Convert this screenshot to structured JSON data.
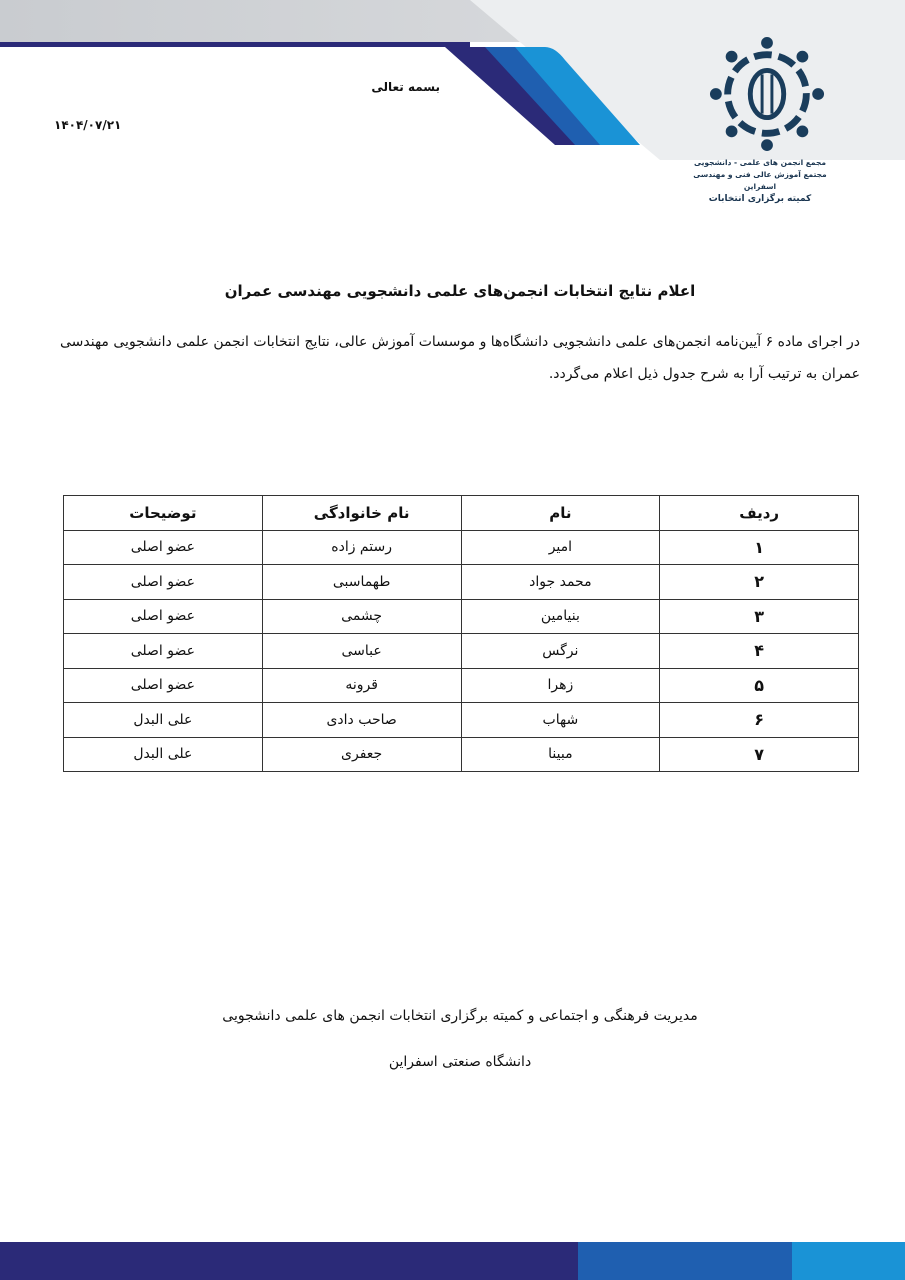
{
  "header": {
    "logo_text": [
      "مجمع انجمن های علمی - دانشجویی",
      "مجتمع آموزش عالی فنی و مهندسی اسفراین",
      "کمیته برگزاری انتخابات"
    ],
    "bismillah": "بسمه تعالی",
    "date": "۱۴۰۴/۰۷/۲۱"
  },
  "colors": {
    "navy": "#2b2a78",
    "blue": "#1f5fb0",
    "light_blue": "#1a93d6"
  },
  "title": "اعلام نتایج انتخابات انجمن‌های علمی دانشجویی مهندسی عمران",
  "body": "در اجرای ماده ۶ آیین‌نامه انجمن‌های علمی دانشجویی دانشگاه‌ها و موسسات آموزش عالی، نتایج انتخابات انجمن علمی دانشجویی مهندسی عمران به ترتیب آرا به شرح جدول ذیل اعلام می‌گردد.",
  "table": {
    "headers": [
      "ردیف",
      "نام",
      "نام خانوادگی",
      "توضیحات"
    ],
    "rows": [
      [
        "۱",
        "امیر",
        "رستم زاده",
        "عضو اصلی"
      ],
      [
        "۲",
        "محمد جواد",
        "طهماسبی",
        "عضو اصلی"
      ],
      [
        "۳",
        "بنیامین",
        "چشمی",
        "عضو اصلی"
      ],
      [
        "۴",
        "نرگس",
        "عباسی",
        "عضو اصلی"
      ],
      [
        "۵",
        "زهرا",
        "قرونه",
        "عضو اصلی"
      ],
      [
        "۶",
        "شهاب",
        "صاحب دادی",
        "علی البدل"
      ],
      [
        "۷",
        "مبینا",
        "جعفری",
        "علی البدل"
      ]
    ]
  },
  "footer": {
    "line1": "مدیریت فرهنگی و اجتماعی و کمیته برگزاری انتخابات انجمن های علمی دانشجویی",
    "line2": "دانشگاه صنعتی اسفراین"
  }
}
